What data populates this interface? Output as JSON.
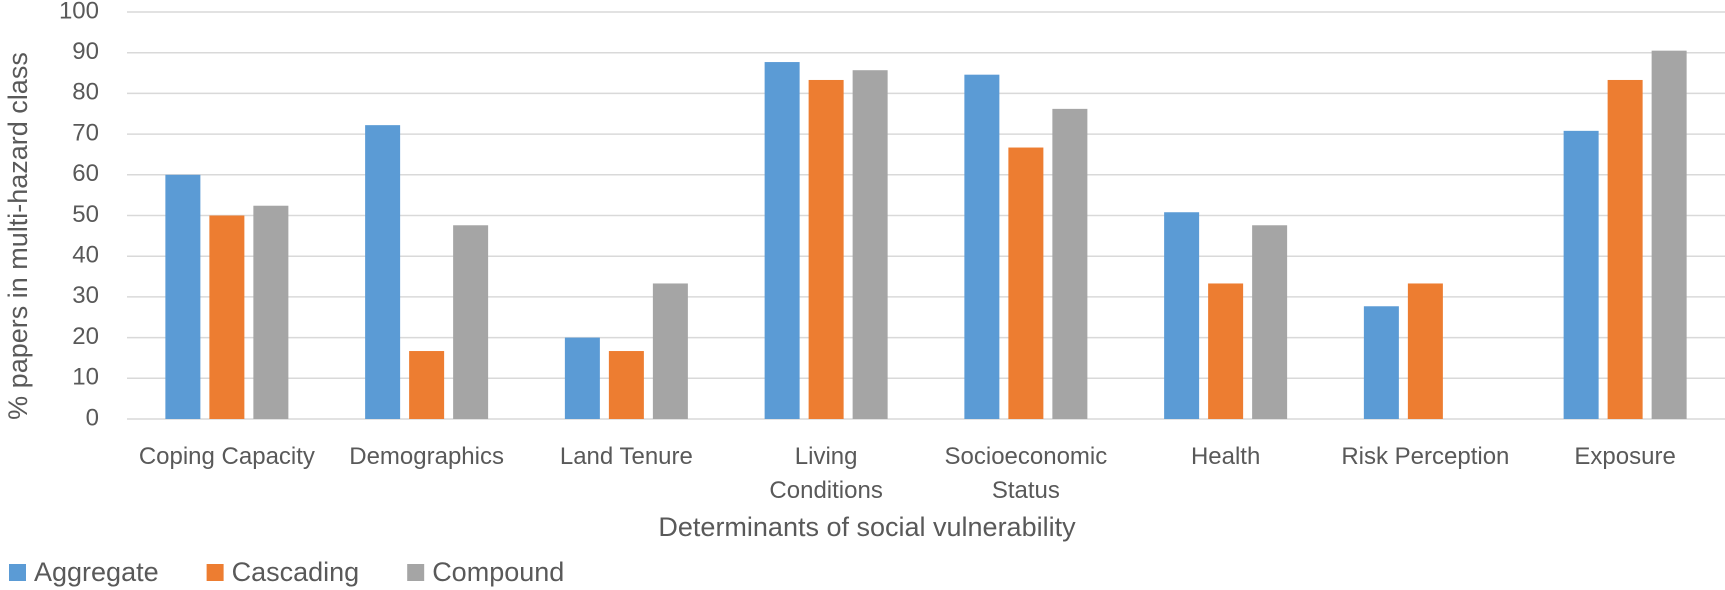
{
  "chart_data": {
    "type": "bar",
    "x_label": "Determinants of social vulnerability",
    "y_label": "% papers in multi-hazard class",
    "categories": [
      "Coping Capacity",
      "Demographics",
      "Land Tenure",
      "Living Conditions",
      "Socioeconomic Status",
      "Health",
      "Risk Perception",
      "Exposure"
    ],
    "series": [
      {
        "name": "Aggregate",
        "color": "#5b9bd5",
        "values": [
          60,
          72.2,
          20,
          87.7,
          84.6,
          50.8,
          27.7,
          70.8
        ]
      },
      {
        "name": "Cascading",
        "color": "#ed7d31",
        "values": [
          50,
          16.7,
          16.7,
          83.3,
          66.7,
          33.3,
          33.3,
          83.3
        ]
      },
      {
        "name": "Compound",
        "color": "#a5a5a5",
        "values": [
          52.4,
          47.6,
          33.3,
          85.7,
          76.2,
          47.6,
          null,
          90.5
        ]
      }
    ],
    "ylim": [
      0,
      100
    ],
    "yticks": [
      0,
      10,
      20,
      30,
      40,
      50,
      60,
      70,
      80,
      90,
      100
    ],
    "grid": true,
    "legend": "bottom-left"
  }
}
